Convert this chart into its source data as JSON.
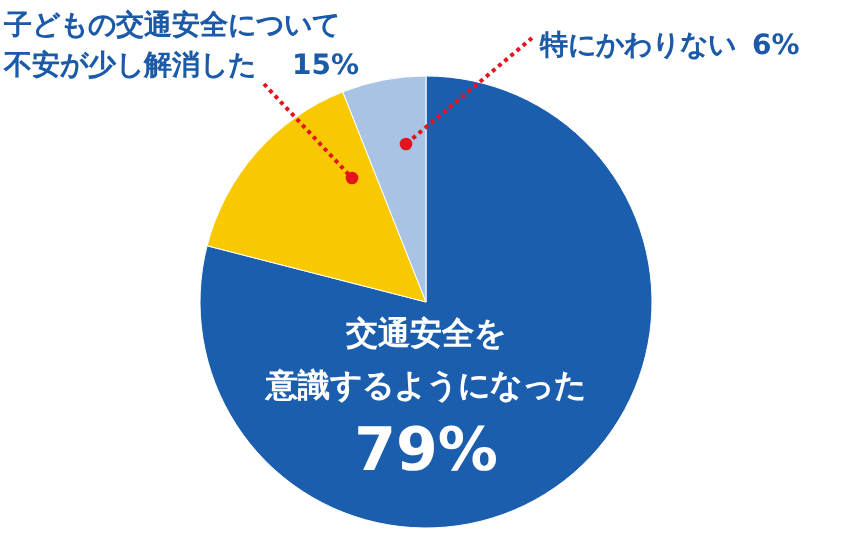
{
  "chart_data": {
    "type": "pie",
    "categories": [
      "交通安全を意識するようになった",
      "子どもの交通安全について不安が少し解消した",
      "特にかわりない"
    ],
    "values": [
      79,
      15,
      6
    ],
    "value_labels": [
      "79%",
      "15%",
      "6%"
    ],
    "colors": [
      "#1b5eae",
      "#f8c800",
      "#a8c3e3"
    ]
  }
}
